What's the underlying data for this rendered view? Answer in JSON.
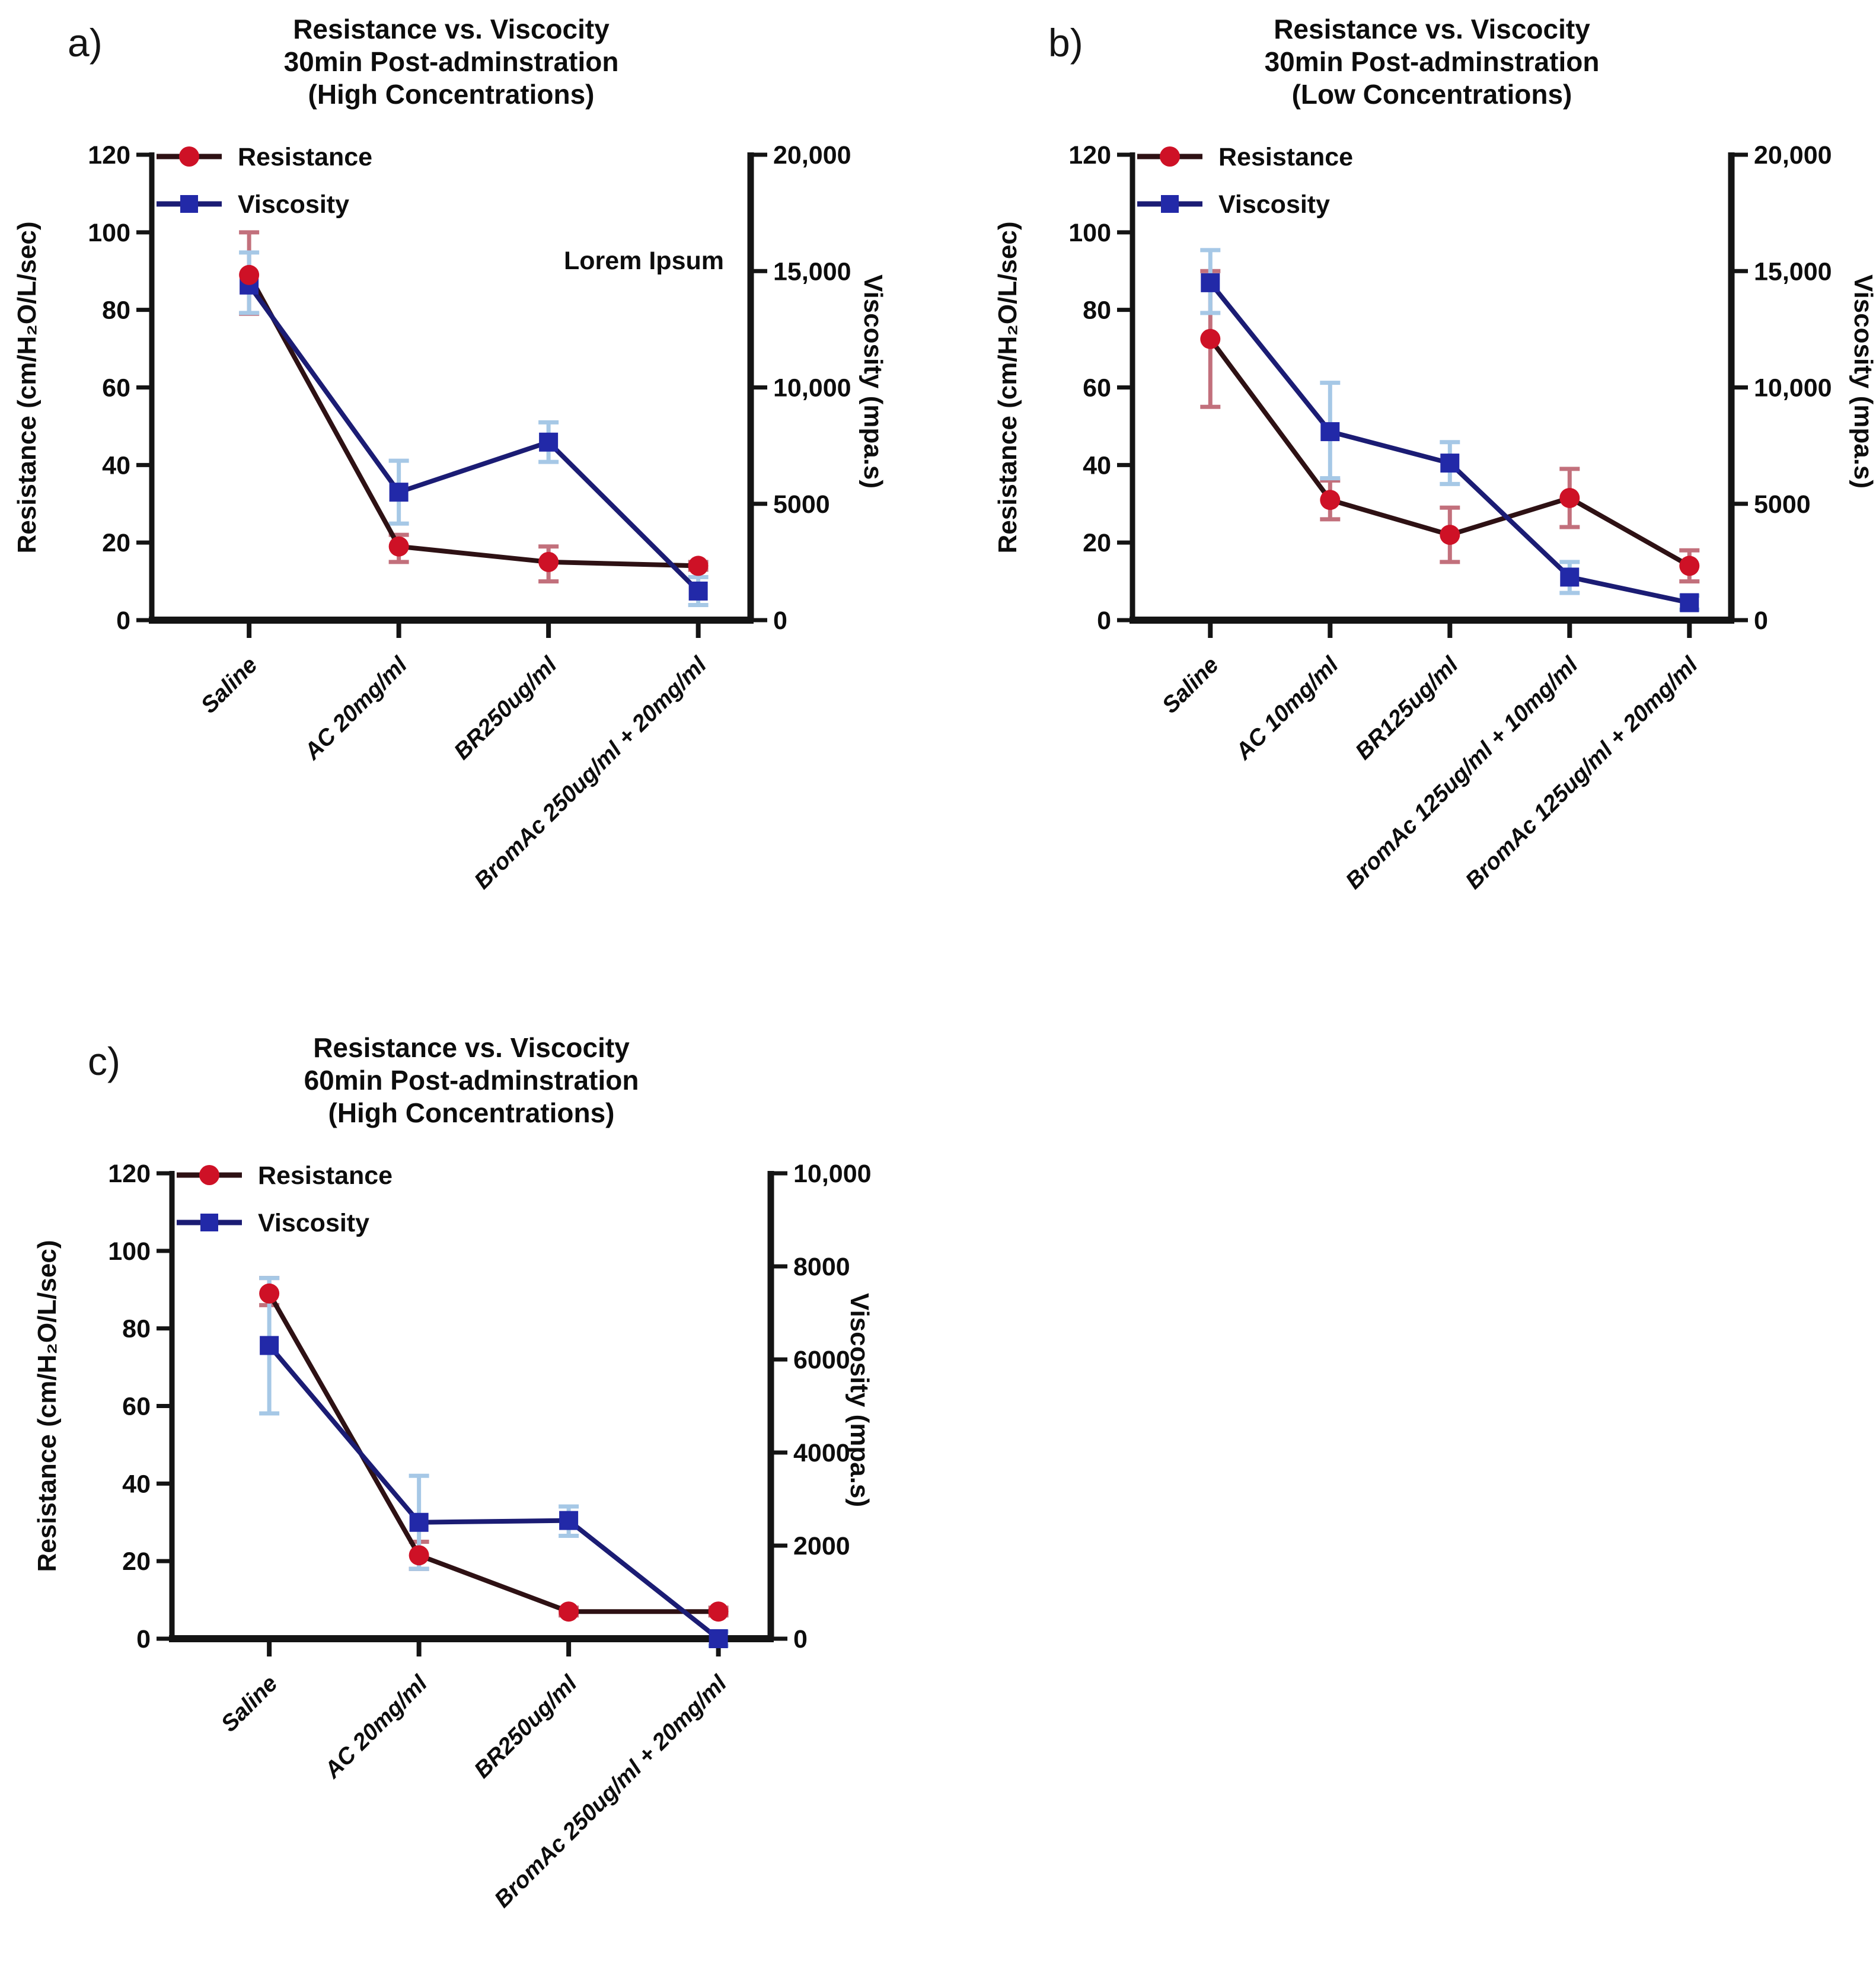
{
  "page": {
    "background": "#ffffff"
  },
  "colors": {
    "resistance_marker": "#ce1126",
    "resistance_line": "#2e1114",
    "resistance_error": "#c2707c",
    "viscosity_marker": "#2229a8",
    "viscosity_line": "#1b1c74",
    "viscosity_error": "#a6c8e6",
    "axis": "#141414",
    "text": "#0d0d0d"
  },
  "chart_data": [
    {
      "type": "line",
      "panel_label": "a)",
      "title_lines": [
        "Resistance vs. Viscocity",
        "30min Post-adminstration",
        "(High Concentrations)"
      ],
      "annotation": "Lorem Ipsum",
      "legend": [
        "Resistance",
        "Viscosity"
      ],
      "legend_position": "top-left-inside",
      "grid": false,
      "categories": [
        "Saline",
        "AC 20mg/ml",
        "BR250ug/ml",
        "BromAc 250ug/ml + 20mg/ml"
      ],
      "left_axis": {
        "label": "Resistance (cm/H₂O/L/sec)",
        "min": 0,
        "max": 120,
        "tick_values": [
          0,
          20,
          40,
          60,
          80,
          100,
          120
        ],
        "tick_labels": [
          "0",
          "20",
          "40",
          "60",
          "80",
          "100",
          "120"
        ]
      },
      "right_axis": {
        "label": "Viscosity (mpa.s)",
        "min": 0,
        "max": 20000,
        "tick_values": [
          0,
          5000,
          10000,
          15000,
          20000
        ],
        "tick_labels": [
          "0",
          "5000",
          "10,000",
          "15,000",
          "20,000"
        ]
      },
      "series": [
        {
          "name": "Resistance",
          "axis": "left",
          "marker": "circle",
          "values": [
            89,
            19,
            15,
            14
          ],
          "err_lo": [
            10,
            4,
            5,
            1
          ],
          "err_hi": [
            11,
            3,
            4,
            1
          ]
        },
        {
          "name": "Viscosity",
          "axis": "right",
          "marker": "square",
          "values": [
            14400,
            5500,
            7650,
            1250
          ],
          "err_lo": [
            1200,
            1350,
            850,
            600
          ],
          "err_hi": [
            1400,
            1350,
            850,
            600
          ]
        }
      ]
    },
    {
      "type": "line",
      "panel_label": "b)",
      "title_lines": [
        "Resistance vs. Viscocity",
        "30min Post-adminstration",
        "(Low Concentrations)"
      ],
      "annotation": "",
      "legend": [
        "Resistance",
        "Viscosity"
      ],
      "legend_position": "top-left-inside",
      "grid": false,
      "categories": [
        "Saline",
        "AC 10mg/ml",
        "BR125ug/ml",
        "BromAc 125ug/ml + 10mg/ml",
        "BromAc 125ug/ml + 20mg/ml"
      ],
      "left_axis": {
        "label": "Resistance (cm/H₂O/L/sec)",
        "min": 0,
        "max": 120,
        "tick_values": [
          0,
          20,
          40,
          60,
          80,
          100,
          120
        ],
        "tick_labels": [
          "0",
          "20",
          "40",
          "60",
          "80",
          "100",
          "120"
        ]
      },
      "right_axis": {
        "label": "Viscosity (mpa.s)",
        "min": 0,
        "max": 20000,
        "tick_values": [
          0,
          5000,
          10000,
          15000,
          20000
        ],
        "tick_labels": [
          "0",
          "5000",
          "10,000",
          "15,000",
          "20,000"
        ]
      },
      "series": [
        {
          "name": "Resistance",
          "axis": "left",
          "marker": "circle",
          "values": [
            72.5,
            31,
            22,
            31.5,
            14
          ],
          "err_lo": [
            17.5,
            5,
            7,
            7.5,
            4
          ],
          "err_hi": [
            17.5,
            5,
            7,
            7.5,
            4
          ]
        },
        {
          "name": "Viscosity",
          "axis": "right",
          "marker": "square",
          "values": [
            14500,
            8100,
            6750,
            1850,
            750
          ],
          "err_lo": [
            1300,
            2000,
            900,
            680,
            300
          ],
          "err_hi": [
            1400,
            2100,
            900,
            650,
            300
          ]
        }
      ]
    },
    {
      "type": "line",
      "panel_label": "c)",
      "title_lines": [
        "Resistance vs. Viscocity",
        "60min Post-adminstration",
        "(High Concentrations)"
      ],
      "annotation": "",
      "legend": [
        "Resistance",
        "Viscosity"
      ],
      "legend_position": "top-left-inside",
      "grid": false,
      "categories": [
        "Saline",
        "AC 20mg/ml",
        "BR250ug/ml",
        "BromAc 250ug/ml + 20mg/ml"
      ],
      "left_axis": {
        "label": "Resistance (cm/H₂O/L/sec)",
        "min": 0,
        "max": 120,
        "tick_values": [
          0,
          20,
          40,
          60,
          80,
          100,
          120
        ],
        "tick_labels": [
          "0",
          "20",
          "40",
          "60",
          "80",
          "100",
          "120"
        ]
      },
      "right_axis": {
        "label": "Viscosity (mpa.s)",
        "min": 0,
        "max": 10000,
        "tick_values": [
          0,
          2000,
          4000,
          6000,
          8000,
          10000
        ],
        "tick_labels": [
          "0",
          "2000",
          "4000",
          "6000",
          "8000",
          "10,000"
        ]
      },
      "series": [
        {
          "name": "Resistance",
          "axis": "left",
          "marker": "circle",
          "values": [
            89,
            21.5,
            7,
            7
          ],
          "err_lo": [
            3,
            3.5,
            1,
            1
          ],
          "err_hi": [
            4,
            3.5,
            1,
            1
          ]
        },
        {
          "name": "Viscosity",
          "axis": "right",
          "marker": "square",
          "values": [
            6300,
            2500,
            2540,
            0
          ],
          "err_lo": [
            1460,
            1000,
            330,
            150
          ],
          "err_hi": [
            1450,
            1000,
            300,
            150
          ]
        }
      ]
    }
  ]
}
